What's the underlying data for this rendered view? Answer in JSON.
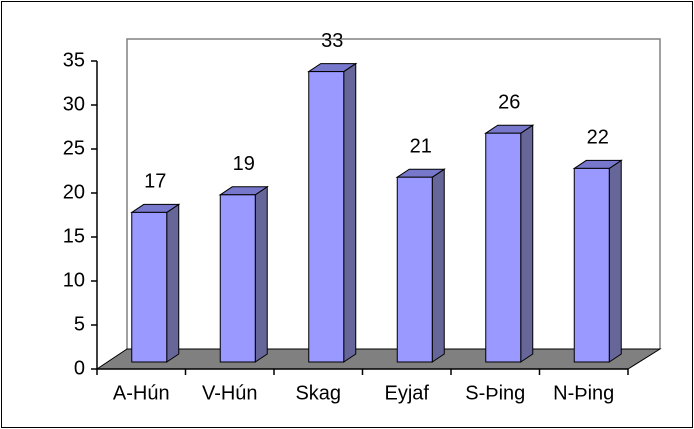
{
  "chart_data": {
    "type": "bar3d",
    "categories": [
      "A-Hún",
      "V-Hún",
      "Skag",
      "Eyjaf",
      "S-Þing",
      "N-Þing"
    ],
    "values": [
      17,
      19,
      33,
      21,
      26,
      22
    ],
    "color": "#9999ff",
    "ylim": [
      0,
      35
    ],
    "yticks": [
      0,
      5,
      10,
      15,
      20,
      25,
      30,
      35
    ],
    "grid": false
  }
}
